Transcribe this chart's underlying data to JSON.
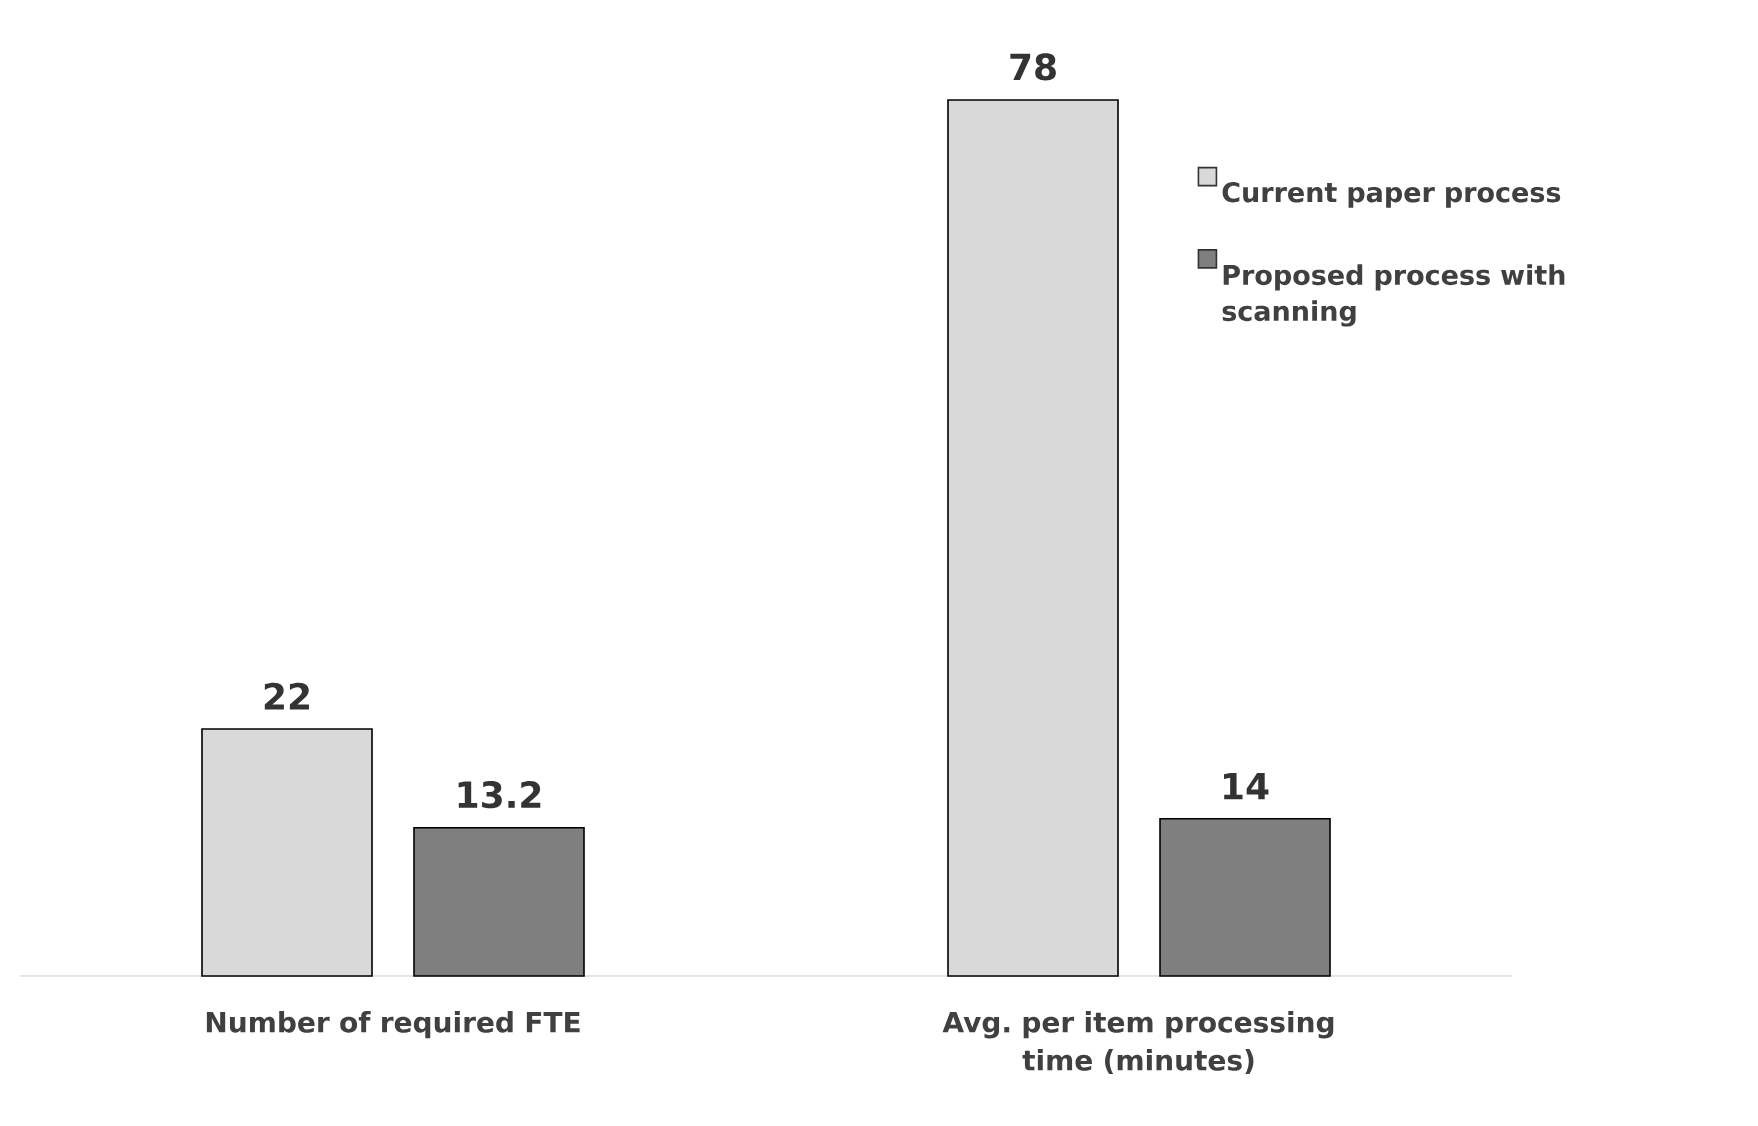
{
  "chart_data": {
    "type": "bar",
    "categories": [
      "Number of required FTE",
      "Avg. per item processing time (minutes)"
    ],
    "series": [
      {
        "name": "Current paper process",
        "color": "#d9d9d9",
        "values": [
          22,
          78
        ]
      },
      {
        "name": "Proposed process with scanning",
        "color": "#7f7f7f",
        "values": [
          13.2,
          14
        ]
      }
    ],
    "data_labels": true,
    "legend": "top right"
  }
}
